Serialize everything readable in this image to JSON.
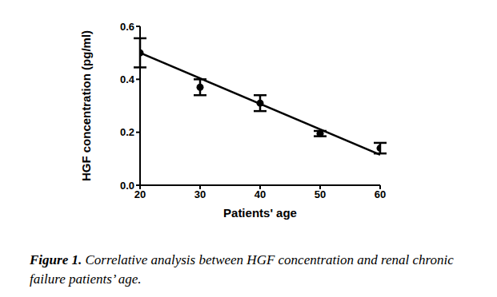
{
  "chart_data": {
    "type": "scatter",
    "xlabel": "Patients' age",
    "ylabel": "HGF concentration (pg/ml)",
    "caption_label": "Figure 1.",
    "caption": "Correlative analysis between HGF concentration and renal chronic failure patients’ age.",
    "x": [
      20,
      30,
      40,
      50,
      60
    ],
    "values": [
      0.5,
      0.37,
      0.31,
      0.195,
      0.14
    ],
    "errors": [
      0.055,
      0.03,
      0.03,
      0.01,
      0.02
    ],
    "trend_line": {
      "x": [
        20,
        60
      ],
      "values": [
        0.5,
        0.115
      ]
    },
    "xlim": [
      20,
      60
    ],
    "ylim": [
      0,
      0.6
    ],
    "xticks": [
      20,
      30,
      40,
      50,
      60
    ],
    "yticks": [
      {
        "value": 0,
        "label": "0.0"
      },
      0.2,
      0.4,
      0.6
    ],
    "color": "#000000",
    "marker": "circle",
    "grid": false
  }
}
